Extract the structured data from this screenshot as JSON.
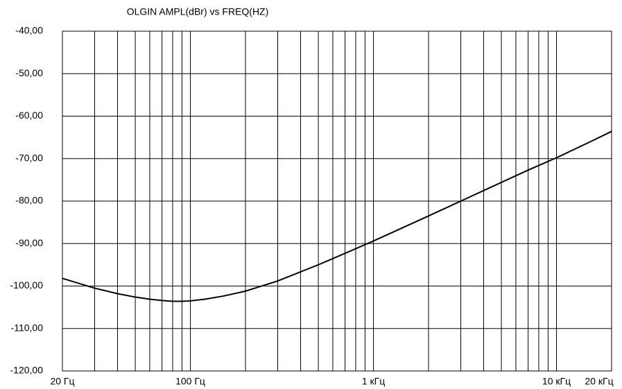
{
  "chart_data": {
    "type": "line",
    "title": "OLGIN AMPL(dBr) vs FREQ(HZ)",
    "x": [
      20,
      30,
      40,
      50,
      60,
      70,
      80,
      90,
      100,
      120,
      150,
      200,
      300,
      500,
      700,
      1000,
      2000,
      3000,
      5000,
      7000,
      10000,
      15000,
      20000
    ],
    "series": [
      {
        "color": "#000000",
        "values": [
          -98.2,
          -100.5,
          -101.8,
          -102.6,
          -103.1,
          -103.4,
          -103.6,
          -103.6,
          -103.5,
          -103.1,
          -102.4,
          -101.2,
          -98.8,
          -95,
          -92.3,
          -89.4,
          -83.5,
          -80,
          -75.6,
          -72.7,
          -69.8,
          -66.2,
          -63.6
        ]
      }
    ],
    "xlog": true,
    "xlim": [
      20,
      20000
    ],
    "xticks": [
      {
        "value": 20,
        "label": "20 Гц"
      },
      {
        "value": 100,
        "label": "100 Гц"
      },
      {
        "value": 1000,
        "label": "1 кГц"
      },
      {
        "value": 10000,
        "label": "10 кГц"
      },
      {
        "value": 20000,
        "label": "20 кГц"
      }
    ],
    "xminor": [
      30,
      40,
      50,
      60,
      70,
      80,
      90,
      200,
      300,
      400,
      500,
      600,
      700,
      800,
      900,
      2000,
      3000,
      4000,
      5000,
      6000,
      7000,
      8000,
      9000
    ],
    "ylim": [
      -120,
      -40
    ],
    "yticks": [
      {
        "value": -40,
        "label": "-40,00"
      },
      {
        "value": -50,
        "label": "-50,00"
      },
      {
        "value": -60,
        "label": "-60,00"
      },
      {
        "value": -70,
        "label": "-70,00"
      },
      {
        "value": -80,
        "label": "-80,00"
      },
      {
        "value": -90,
        "label": "-90,00"
      },
      {
        "value": -100,
        "label": "-100,00"
      },
      {
        "value": -110,
        "label": "-110,00"
      },
      {
        "value": -120,
        "label": "-120,00"
      }
    ],
    "grid": true
  }
}
